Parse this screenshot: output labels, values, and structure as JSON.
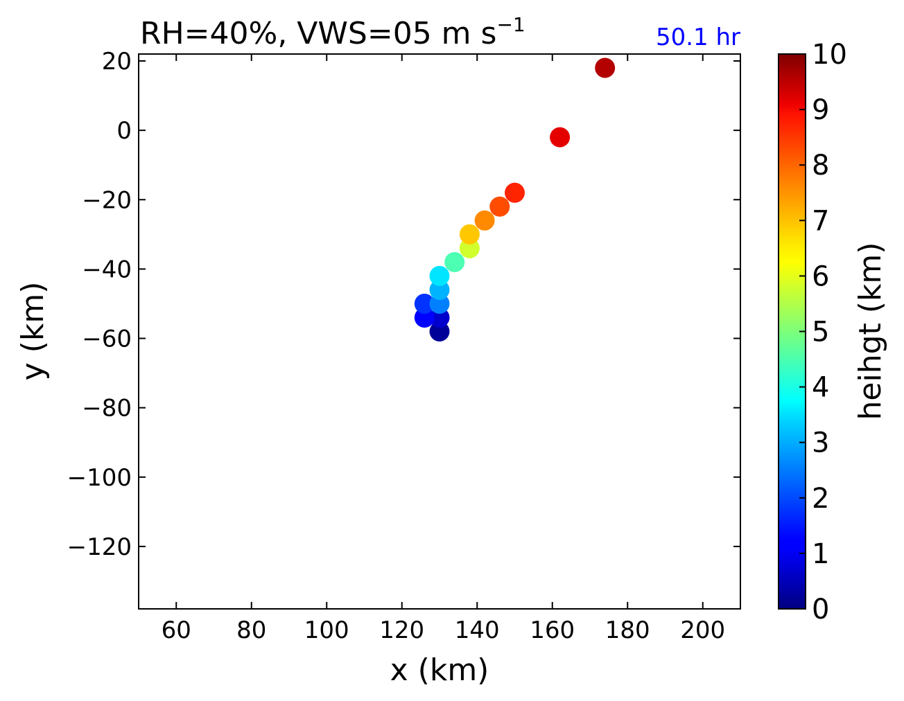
{
  "chart_data": {
    "type": "scatter",
    "title_main": "RH=40%, VWS=05 m s",
    "title_superscript": "−1",
    "time_label": "50.1 hr",
    "time_label_color": "#0000ff",
    "xlabel": "x (km)",
    "ylabel": "y (km)",
    "xlim": [
      50,
      210
    ],
    "ylim": [
      -138,
      22
    ],
    "x_ticks": [
      60,
      80,
      100,
      120,
      140,
      160,
      180,
      200
    ],
    "y_ticks": [
      20,
      0,
      -20,
      -40,
      -60,
      -80,
      -100,
      -120
    ],
    "x_tick_labels": [
      "60",
      "80",
      "100",
      "120",
      "140",
      "160",
      "180",
      "200"
    ],
    "y_tick_labels": [
      "20",
      "0",
      "−20",
      "−40",
      "−60",
      "−80",
      "−100",
      "−120"
    ],
    "grid": false,
    "colormap": "jet",
    "colorbar": {
      "label": "heihgt (km)",
      "range": [
        0,
        10
      ],
      "ticks": [
        0,
        1,
        2,
        3,
        4,
        5,
        6,
        7,
        8,
        9,
        10
      ],
      "tick_labels": [
        "0",
        "1",
        "2",
        "3",
        "4",
        "5",
        "6",
        "7",
        "8",
        "9",
        "10"
      ]
    },
    "points": [
      {
        "x": 130,
        "y": -58,
        "z": 0.25
      },
      {
        "x": 130,
        "y": -54,
        "z": 0.75
      },
      {
        "x": 126,
        "y": -54,
        "z": 1.25
      },
      {
        "x": 126,
        "y": -50,
        "z": 1.75
      },
      {
        "x": 130,
        "y": -50,
        "z": 2.5
      },
      {
        "x": 130,
        "y": -46,
        "z": 3.0
      },
      {
        "x": 130,
        "y": -42,
        "z": 3.5
      },
      {
        "x": 134,
        "y": -38,
        "z": 4.5
      },
      {
        "x": 138,
        "y": -34,
        "z": 5.8
      },
      {
        "x": 138,
        "y": -30,
        "z": 6.8
      },
      {
        "x": 142,
        "y": -26,
        "z": 7.4
      },
      {
        "x": 146,
        "y": -22,
        "z": 8.0
      },
      {
        "x": 150,
        "y": -18,
        "z": 8.4
      },
      {
        "x": 162,
        "y": -2,
        "z": 9.0
      },
      {
        "x": 174,
        "y": 18,
        "z": 9.5
      }
    ]
  }
}
